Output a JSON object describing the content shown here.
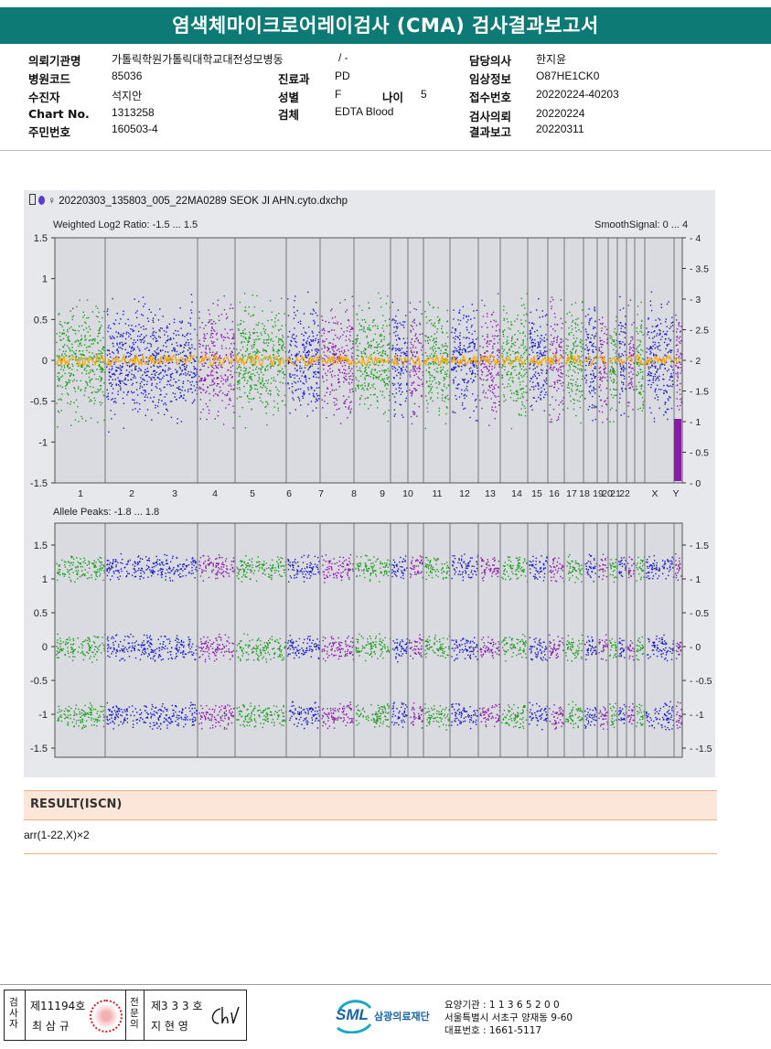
{
  "header": {
    "title": "염색체마이크로어레이검사 (CMA) 검사결과보고서"
  },
  "info": {
    "institution_label": "의뢰기관명",
    "institution": "가톨릭학원가톨릭대학교대전성모병동",
    "ward_value": "/ -",
    "doctor_label": "담당의사",
    "doctor": "한지윤",
    "hospital_code_label": "병원코드",
    "hospital_code": "85036",
    "dept_label": "진료과",
    "dept": "PD",
    "clinical_label": "임상정보",
    "clinical": "O87HE1CK0",
    "patient_label": "수진자",
    "patient": "석지안",
    "sex_label": "성별",
    "sex": "F",
    "age_label": "나이",
    "age": "5",
    "receipt_label": "접수번호",
    "receipt": "20220224-40203",
    "chart_label": "Chart No.",
    "chart": "1313258",
    "specimen_label": "검체",
    "specimen": "EDTA Blood",
    "request_label": "검사의뢰",
    "request": "20220224",
    "id_label": "주민번호",
    "id": "160503-4",
    "report_label": "결과보고",
    "report": "20220311"
  },
  "plot": {
    "filename": "20220303_135803_005_22MA0289 SEOK JI AHN.cyto.dxchp",
    "top_label": "Weighted Log2 Ratio: -1.5 ... 1.5",
    "smooth_label": "SmoothSignal: 0 ... 4",
    "bottom_label": "Allele Peaks: -1.8 ... 1.8",
    "chromosomes": [
      "1",
      "2",
      "3",
      "4",
      "5",
      "6",
      "7",
      "8",
      "9",
      "10",
      "11",
      "12",
      "13",
      "14",
      "15",
      "16",
      "17",
      "18",
      "19",
      "20",
      "21",
      "22",
      "X",
      "Y"
    ],
    "top_left_ticks": [
      "1.5",
      "1",
      "0.5",
      "0",
      "-0.5",
      "-1",
      "-1.5"
    ],
    "top_right_ticks": [
      "4",
      "3.5",
      "3",
      "2.5",
      "2",
      "1.5",
      "1",
      "0.5",
      "0"
    ],
    "bottom_left_ticks": [
      "1.5",
      "1",
      "0.5",
      "0",
      "-0.5",
      "-1",
      "-1.5"
    ],
    "bottom_right_ticks": [
      "1.5",
      "1",
      "0.5",
      "0",
      "-0.5",
      "-1",
      "-1.5"
    ]
  },
  "result": {
    "heading": "RESULT(ISCN)",
    "value": "arr(1-22,X)×2"
  },
  "signature": {
    "examiner_label": "검사자",
    "examiner_no": "제11194호",
    "examiner_name": "최 삼 규",
    "specialist_label": "전문의",
    "specialist_no": "제3 3 3 호",
    "specialist_name": "지 현 영"
  },
  "footer": {
    "org_abbr": "SML",
    "org_name": "삼광의료재단",
    "code": "요양기관 : 1 1 3 6 5 2 0 0",
    "address": "서울특별시 서초구 양재동 9-60",
    "phone": "대표번호 : 1661-5117"
  },
  "colors": {
    "teal": "#0e7a75",
    "green": "#1c9c1c",
    "blue": "#1a1acc",
    "purple": "#8a1aa8",
    "orange": "#f5a800"
  }
}
